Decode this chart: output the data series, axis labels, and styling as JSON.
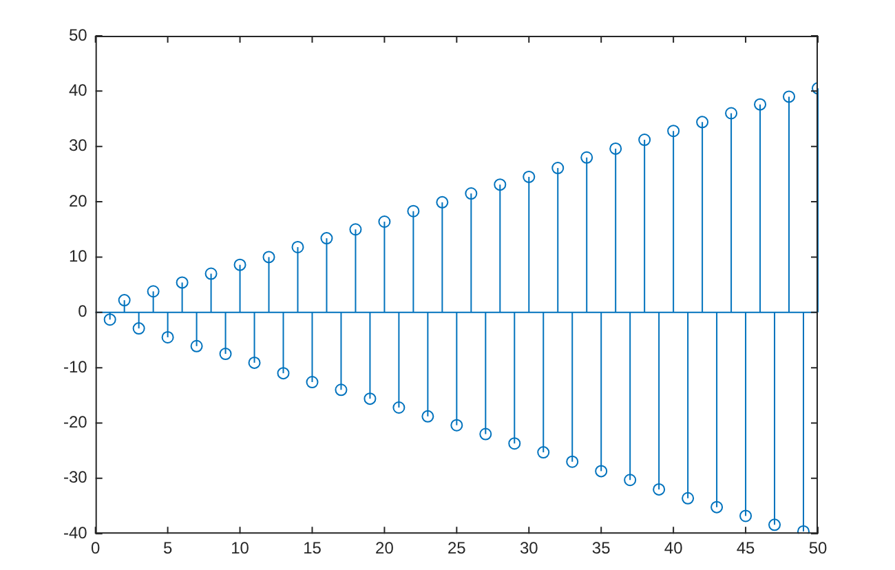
{
  "chart_data": {
    "type": "lollipop",
    "x": [
      1,
      2,
      3,
      4,
      5,
      6,
      7,
      8,
      9,
      10,
      11,
      12,
      13,
      14,
      15,
      16,
      17,
      18,
      19,
      20,
      21,
      22,
      23,
      24,
      25,
      26,
      27,
      28,
      29,
      30,
      31,
      32,
      33,
      34,
      35,
      36,
      37,
      38,
      39,
      40,
      41,
      42,
      43,
      44,
      45,
      46,
      47,
      48,
      49,
      50
    ],
    "values": [
      -1.3,
      2.2,
      -2.9,
      3.8,
      -4.5,
      5.4,
      -6.1,
      7.0,
      -7.5,
      8.6,
      -9.1,
      10,
      -11,
      11.8,
      -12.6,
      13.4,
      -14,
      15,
      -15.6,
      16.4,
      -17.2,
      18.3,
      -18.8,
      19.9,
      -20.4,
      21.5,
      -22,
      23.1,
      -23.7,
      24.5,
      -25.3,
      26.1,
      -27,
      28,
      -28.7,
      29.6,
      -30.3,
      31.2,
      -32,
      32.8,
      -33.6,
      34.4,
      -35.2,
      36,
      -36.8,
      37.6,
      -38.4,
      39,
      -39.6,
      40.5
    ],
    "color": "#0072bd",
    "marker": "circle",
    "ref_lines": [
      {
        "axis": "y",
        "value": 0,
        "color": "#0072bd"
      }
    ],
    "xlim": [
      0,
      50
    ],
    "ylim": [
      -40,
      50
    ],
    "xticks": [
      0,
      5,
      10,
      15,
      20,
      25,
      30,
      35,
      40,
      45,
      50
    ],
    "yticks": [
      -40,
      -30,
      -20,
      -10,
      0,
      10,
      20,
      30,
      40,
      50
    ]
  }
}
